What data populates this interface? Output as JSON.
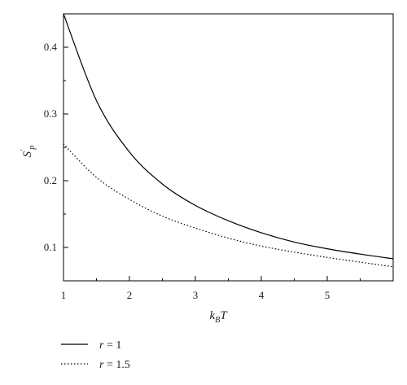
{
  "chart_data": {
    "type": "line",
    "title": "",
    "xlabel": "k_B T",
    "ylabel": "S'_p",
    "xlim": [
      1,
      6
    ],
    "ylim": [
      0.05,
      0.45
    ],
    "xticks": [
      "1",
      "2",
      "3",
      "4",
      "5"
    ],
    "yticks": [
      "0.1",
      "0.2",
      "0.3",
      "0.4"
    ],
    "grid": false,
    "legend_position": "bottom-left",
    "series": [
      {
        "name": "r = 1",
        "style": "solid",
        "color": "#000000",
        "x": [
          1.0,
          1.5,
          2.0,
          2.5,
          3.0,
          3.5,
          4.0,
          4.5,
          5.0,
          5.5,
          6.0
        ],
        "y": [
          0.45,
          0.32,
          0.243,
          0.195,
          0.163,
          0.14,
          0.122,
          0.108,
          0.098,
          0.09,
          0.083
        ]
      },
      {
        "name": "r = 1.5",
        "style": "dotted",
        "color": "#000000",
        "x": [
          1.0,
          1.5,
          2.0,
          2.5,
          3.0,
          3.5,
          4.0,
          4.5,
          5.0,
          5.5,
          6.0
        ],
        "y": [
          0.255,
          0.205,
          0.172,
          0.147,
          0.129,
          0.114,
          0.102,
          0.093,
          0.085,
          0.078,
          0.071
        ]
      }
    ]
  }
}
